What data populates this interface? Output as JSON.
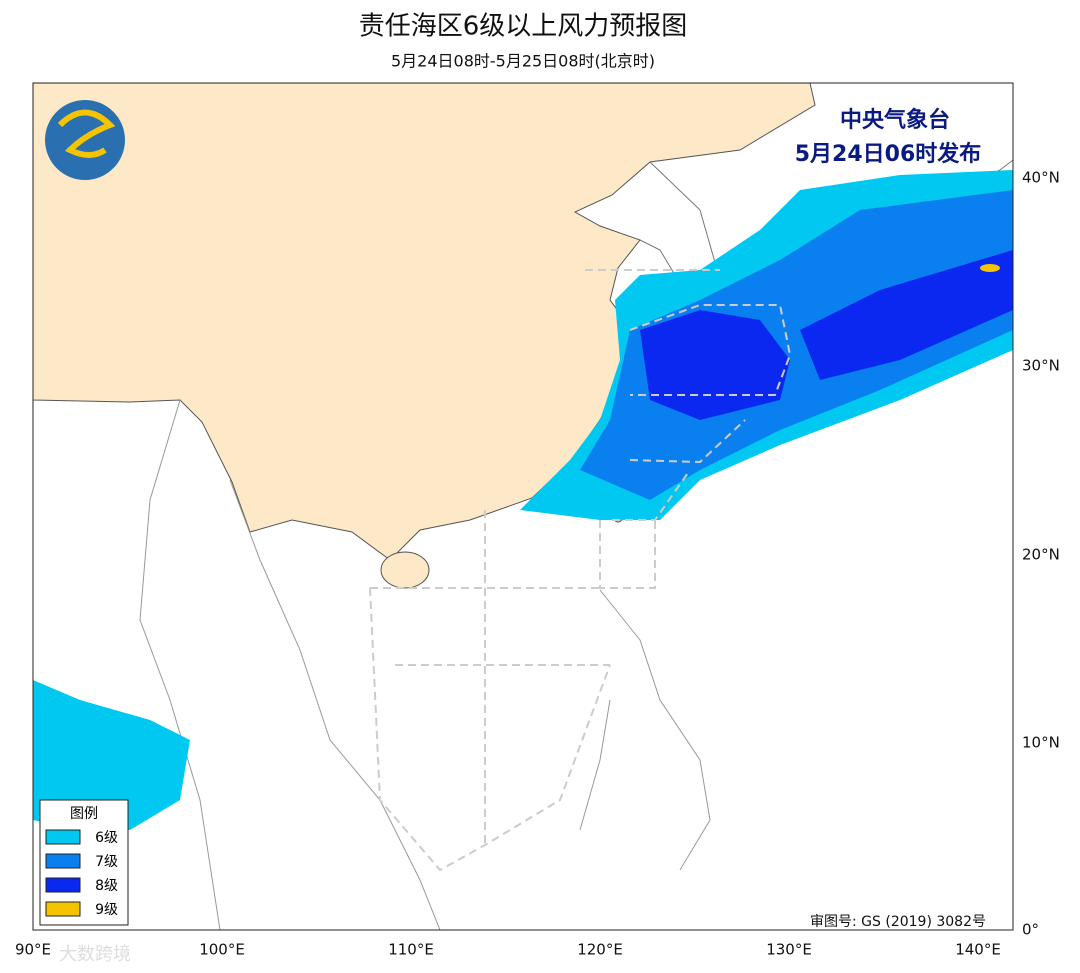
{
  "header": {
    "title": "责任海区6级以上风力预报图",
    "subtitle": "5月24日08时-5月25日08时(北京时)"
  },
  "issuer": [
    "中央气象台",
    "5月24日06时发布"
  ],
  "legend": {
    "title": "图例",
    "items": [
      {
        "label": "6级",
        "color": "#00c8f0"
      },
      {
        "label": "7级",
        "color": "#0a80f0"
      },
      {
        "label": "8级",
        "color": "#0a28f0"
      },
      {
        "label": "9级",
        "color": "#f5c400"
      }
    ]
  },
  "axes": {
    "lon_labels": [
      "90°E",
      "100°E",
      "110°E",
      "120°E",
      "130°E",
      "140°E"
    ],
    "lat_labels": [
      "0°",
      "10°N",
      "20°N",
      "30°N",
      "40°N"
    ]
  },
  "review_number": "审图号: GS (2019) 3082号",
  "watermark": "大数跨境"
}
